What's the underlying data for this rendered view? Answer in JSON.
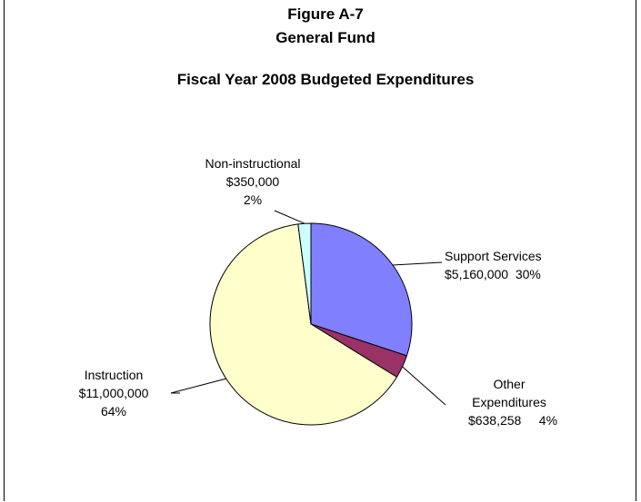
{
  "chart_data": {
    "type": "pie",
    "title": [
      "Figure A-7",
      "General Fund",
      "Fiscal Year 2008 Budgeted Expenditures"
    ],
    "slices": [
      {
        "category": "Support Services",
        "value": 5160000,
        "value_label": "$5,160,000",
        "percent_label": "30%",
        "color": "#8080ff"
      },
      {
        "category": "Other Expenditures",
        "value": 638258,
        "value_label": "$638,258",
        "percent_label": "4%",
        "color": "#993366"
      },
      {
        "category": "Instruction",
        "value": 11000000,
        "value_label": "$11,000,000",
        "percent_label": "64%",
        "color": "#ffffcc"
      },
      {
        "category": "Non-instructional",
        "value": 350000,
        "value_label": "$350,000",
        "percent_label": "2%",
        "color": "#ccffff"
      }
    ],
    "start_angle_deg": 0,
    "direction": "clockwise",
    "legend": "none",
    "labels": "outside-with-leader-lines"
  }
}
